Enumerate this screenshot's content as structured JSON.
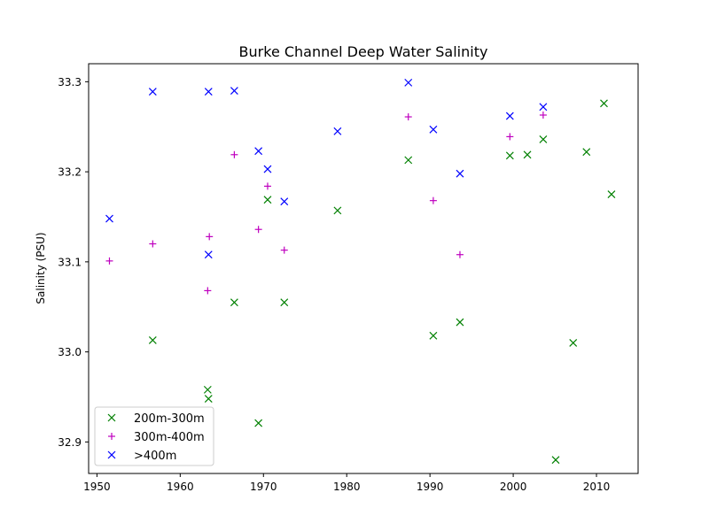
{
  "chart_data": {
    "type": "scatter",
    "title": "Burke Channel Deep Water Salinity",
    "xlabel": "",
    "ylabel": "Salinity (PSU)",
    "xlim": [
      1949,
      2015
    ],
    "ylim": [
      32.865,
      33.32
    ],
    "xticks": [
      1950,
      1960,
      1970,
      1980,
      1990,
      2000,
      2010
    ],
    "yticks": [
      32.9,
      33.0,
      33.1,
      33.2,
      33.3
    ],
    "ytick_labels": [
      "32.9",
      "33.0",
      "33.1",
      "33.2",
      "33.3"
    ],
    "legend_position": "lower-left",
    "series": [
      {
        "name": "200m-300m",
        "marker": "x",
        "color": "#008000",
        "points": [
          [
            1956.7,
            33.013
          ],
          [
            1963.3,
            32.958
          ],
          [
            1963.4,
            32.948
          ],
          [
            1966.5,
            33.055
          ],
          [
            1969.4,
            32.921
          ],
          [
            1970.5,
            33.169
          ],
          [
            1972.5,
            33.055
          ],
          [
            1978.9,
            33.157
          ],
          [
            1987.4,
            33.213
          ],
          [
            1990.4,
            33.018
          ],
          [
            1993.6,
            33.033
          ],
          [
            1999.6,
            33.218
          ],
          [
            2001.7,
            33.219
          ],
          [
            2003.6,
            33.236
          ],
          [
            2005.1,
            32.88
          ],
          [
            2007.2,
            33.01
          ],
          [
            2008.8,
            33.222
          ],
          [
            2010.9,
            33.276
          ],
          [
            2011.8,
            33.175
          ]
        ]
      },
      {
        "name": "300m-400m",
        "marker": "+",
        "color": "#bf00bf",
        "points": [
          [
            1951.5,
            33.101
          ],
          [
            1956.7,
            33.12
          ],
          [
            1963.3,
            33.068
          ],
          [
            1963.5,
            33.128
          ],
          [
            1966.5,
            33.219
          ],
          [
            1969.4,
            33.136
          ],
          [
            1970.5,
            33.184
          ],
          [
            1972.5,
            33.113
          ],
          [
            1987.4,
            33.261
          ],
          [
            1990.4,
            33.168
          ],
          [
            1993.6,
            33.108
          ],
          [
            1999.6,
            33.239
          ],
          [
            2003.6,
            33.263
          ]
        ]
      },
      {
        "name": ">400m",
        "marker": "x",
        "color": "#0000ff",
        "points": [
          [
            1951.5,
            33.148
          ],
          [
            1956.7,
            33.289
          ],
          [
            1963.4,
            33.108
          ],
          [
            1963.4,
            33.289
          ],
          [
            1966.5,
            33.29
          ],
          [
            1969.4,
            33.223
          ],
          [
            1970.5,
            33.203
          ],
          [
            1972.5,
            33.167
          ],
          [
            1978.9,
            33.245
          ],
          [
            1987.4,
            33.299
          ],
          [
            1990.4,
            33.247
          ],
          [
            1993.6,
            33.198
          ],
          [
            1999.6,
            33.262
          ],
          [
            2003.6,
            33.272
          ]
        ]
      }
    ]
  }
}
